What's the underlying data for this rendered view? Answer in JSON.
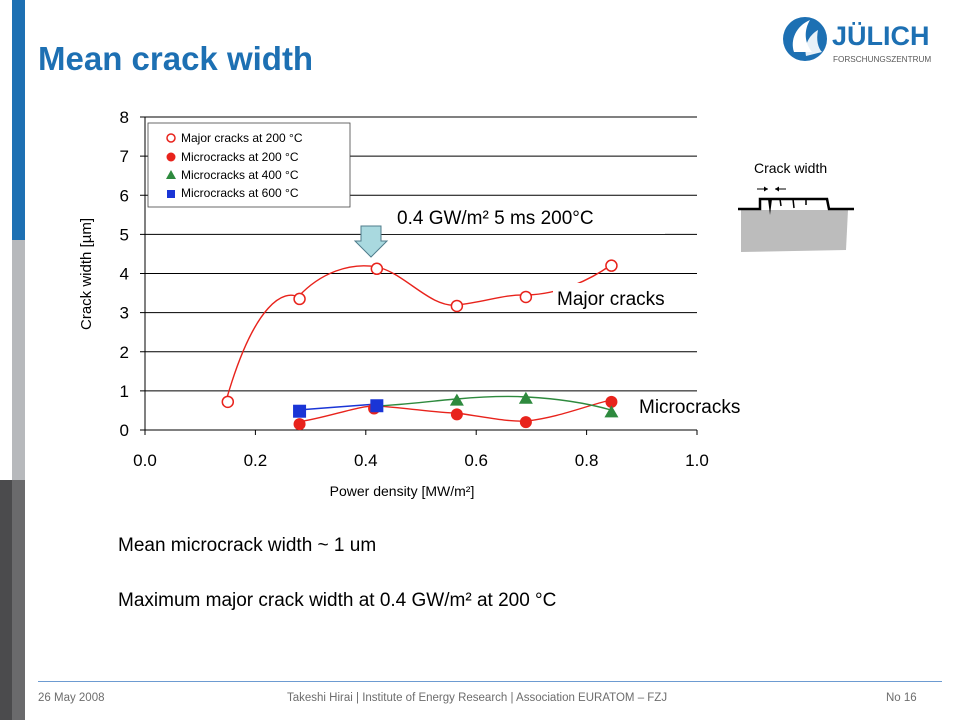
{
  "slide": {
    "title": "Mean crack width",
    "colors": {
      "accent_blue": "#1d70b3",
      "bar_light": "#b7b9bc",
      "bar_dark": "#4b4b4d",
      "footer_line": "#6d9bd1"
    },
    "logo": {
      "text": "JÜLICH",
      "subtext": "FORSCHUNGSZENTRUM"
    }
  },
  "chart_data": {
    "type": "scatter",
    "xlabel": "Power density [MW/m²]",
    "ylabel": "Crack width [µm]",
    "xlim": [
      0.0,
      1.0
    ],
    "ylim": [
      0,
      8
    ],
    "xticks": [
      "0.0",
      "0.2",
      "0.4",
      "0.6",
      "0.8",
      "1.0"
    ],
    "yticks": [
      "0",
      "1",
      "2",
      "3",
      "4",
      "5",
      "6",
      "7",
      "8"
    ],
    "grid": "horizontal",
    "legend_position": "top-left",
    "series": [
      {
        "name": "Major cracks at 200 °C",
        "marker": "circle-open",
        "color": "#e8231c",
        "x": [
          0.15,
          0.28,
          0.42,
          0.565,
          0.69,
          0.845
        ],
        "y": [
          0.72,
          3.35,
          4.12,
          3.17,
          3.4,
          4.2
        ]
      },
      {
        "name": "Microcracks at 200 °C",
        "marker": "circle",
        "color": "#e8231c",
        "x": [
          0.28,
          0.415,
          0.565,
          0.69,
          0.845
        ],
        "y": [
          0.15,
          0.55,
          0.4,
          0.2,
          0.72
        ]
      },
      {
        "name": "Microcracks at 400 °C",
        "marker": "triangle",
        "color": "#2e8a3e",
        "x": [
          0.565,
          0.69,
          0.845
        ],
        "y": [
          0.75,
          0.8,
          0.45
        ]
      },
      {
        "name": "Microcracks at 600 °C",
        "marker": "square",
        "color": "#1a35d6",
        "x": [
          0.28,
          0.42
        ],
        "y": [
          0.48,
          0.62
        ]
      }
    ],
    "annotations": {
      "condition": "0.4 GW/m² 5 ms 200°C",
      "major": "Major cracks",
      "micro": "Microcracks"
    }
  },
  "inset": {
    "label": "Crack width"
  },
  "body": {
    "line1": "Mean microcrack width ~ 1 um",
    "line2": "Maximum major crack width at 0.4 GW/m² at 200 °C"
  },
  "footer": {
    "date": "26 May 2008",
    "center": "Takeshi Hirai | Institute of Energy Research | Association EURATOM – FZJ",
    "page": "No 16"
  }
}
